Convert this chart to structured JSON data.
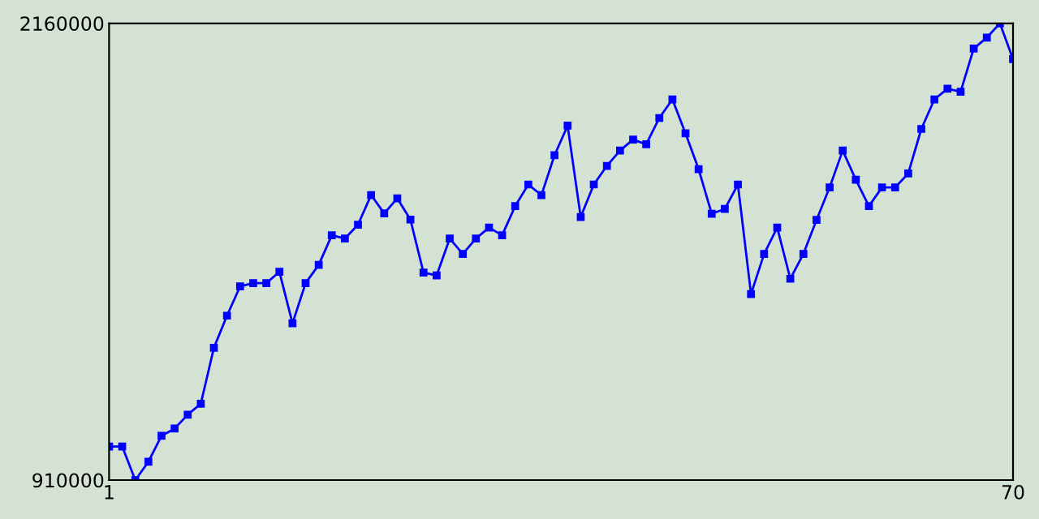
{
  "chart_data": {
    "type": "line",
    "x": [
      1,
      2,
      3,
      4,
      5,
      6,
      7,
      8,
      9,
      10,
      11,
      12,
      13,
      14,
      15,
      16,
      17,
      18,
      19,
      20,
      21,
      22,
      23,
      24,
      25,
      26,
      27,
      28,
      29,
      30,
      31,
      32,
      33,
      34,
      35,
      36,
      37,
      38,
      39,
      40,
      41,
      42,
      43,
      44,
      45,
      46,
      47,
      48,
      49,
      50,
      51,
      52,
      53,
      54,
      55,
      56,
      57,
      58,
      59,
      60,
      61,
      62,
      63,
      64,
      65,
      66,
      67,
      68,
      69,
      70
    ],
    "series": [
      {
        "color": "#0000ff",
        "values": [
          1002000,
          1002000,
          910000,
          960000,
          1031000,
          1051000,
          1089000,
          1119000,
          1272000,
          1360000,
          1440000,
          1449000,
          1449000,
          1480000,
          1339000,
          1449000,
          1499000,
          1580000,
          1571000,
          1609000,
          1690000,
          1640000,
          1681000,
          1623000,
          1478000,
          1470000,
          1571000,
          1529000,
          1571000,
          1601000,
          1580000,
          1660000,
          1719000,
          1690000,
          1799000,
          1880000,
          1630000,
          1719000,
          1770000,
          1812000,
          1842000,
          1829000,
          1901000,
          1952000,
          1859000,
          1761000,
          1639000,
          1652000,
          1719000,
          1419000,
          1529000,
          1601000,
          1461000,
          1529000,
          1622000,
          1711000,
          1812000,
          1732000,
          1660000,
          1711000,
          1711000,
          1749000,
          1871000,
          1952000,
          1981000,
          1973000,
          2091000,
          2121000,
          2160000,
          2062000
        ]
      }
    ],
    "xlim": [
      1,
      70
    ],
    "ylim": [
      910000,
      2160000
    ],
    "xticks": [
      1,
      70
    ],
    "yticks": [
      910000,
      2160000
    ],
    "marker": "square",
    "line_style": "solid",
    "grid": false,
    "legend": false
  }
}
